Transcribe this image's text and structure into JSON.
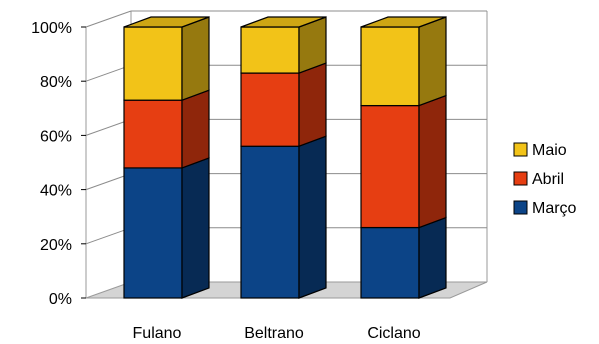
{
  "chart_data": {
    "type": "bar",
    "stacked": "percent",
    "three_d": true,
    "title": "",
    "xlabel": "",
    "ylabel": "",
    "categories": [
      "Fulano",
      "Beltrano",
      "Ciclano"
    ],
    "series": [
      {
        "name": "Março",
        "values": [
          48,
          56,
          26
        ],
        "color": "#0c4487"
      },
      {
        "name": "Abril",
        "values": [
          25,
          27,
          45
        ],
        "color": "#e63e12"
      },
      {
        "name": "Maio",
        "values": [
          27,
          17,
          29
        ],
        "color": "#f2c318"
      }
    ],
    "ylim": [
      0,
      100
    ],
    "yticks": [
      0,
      20,
      40,
      60,
      80,
      100
    ],
    "ytick_labels": [
      "0%",
      "20%",
      "40%",
      "60%",
      "80%",
      "100%"
    ],
    "grid": true,
    "legend": {
      "position": "right",
      "order": [
        "Maio",
        "Abril",
        "Março"
      ]
    },
    "colors": {
      "floor": "#d4d4d4",
      "grid": "#8c8c8c",
      "edge": "#000000"
    }
  }
}
